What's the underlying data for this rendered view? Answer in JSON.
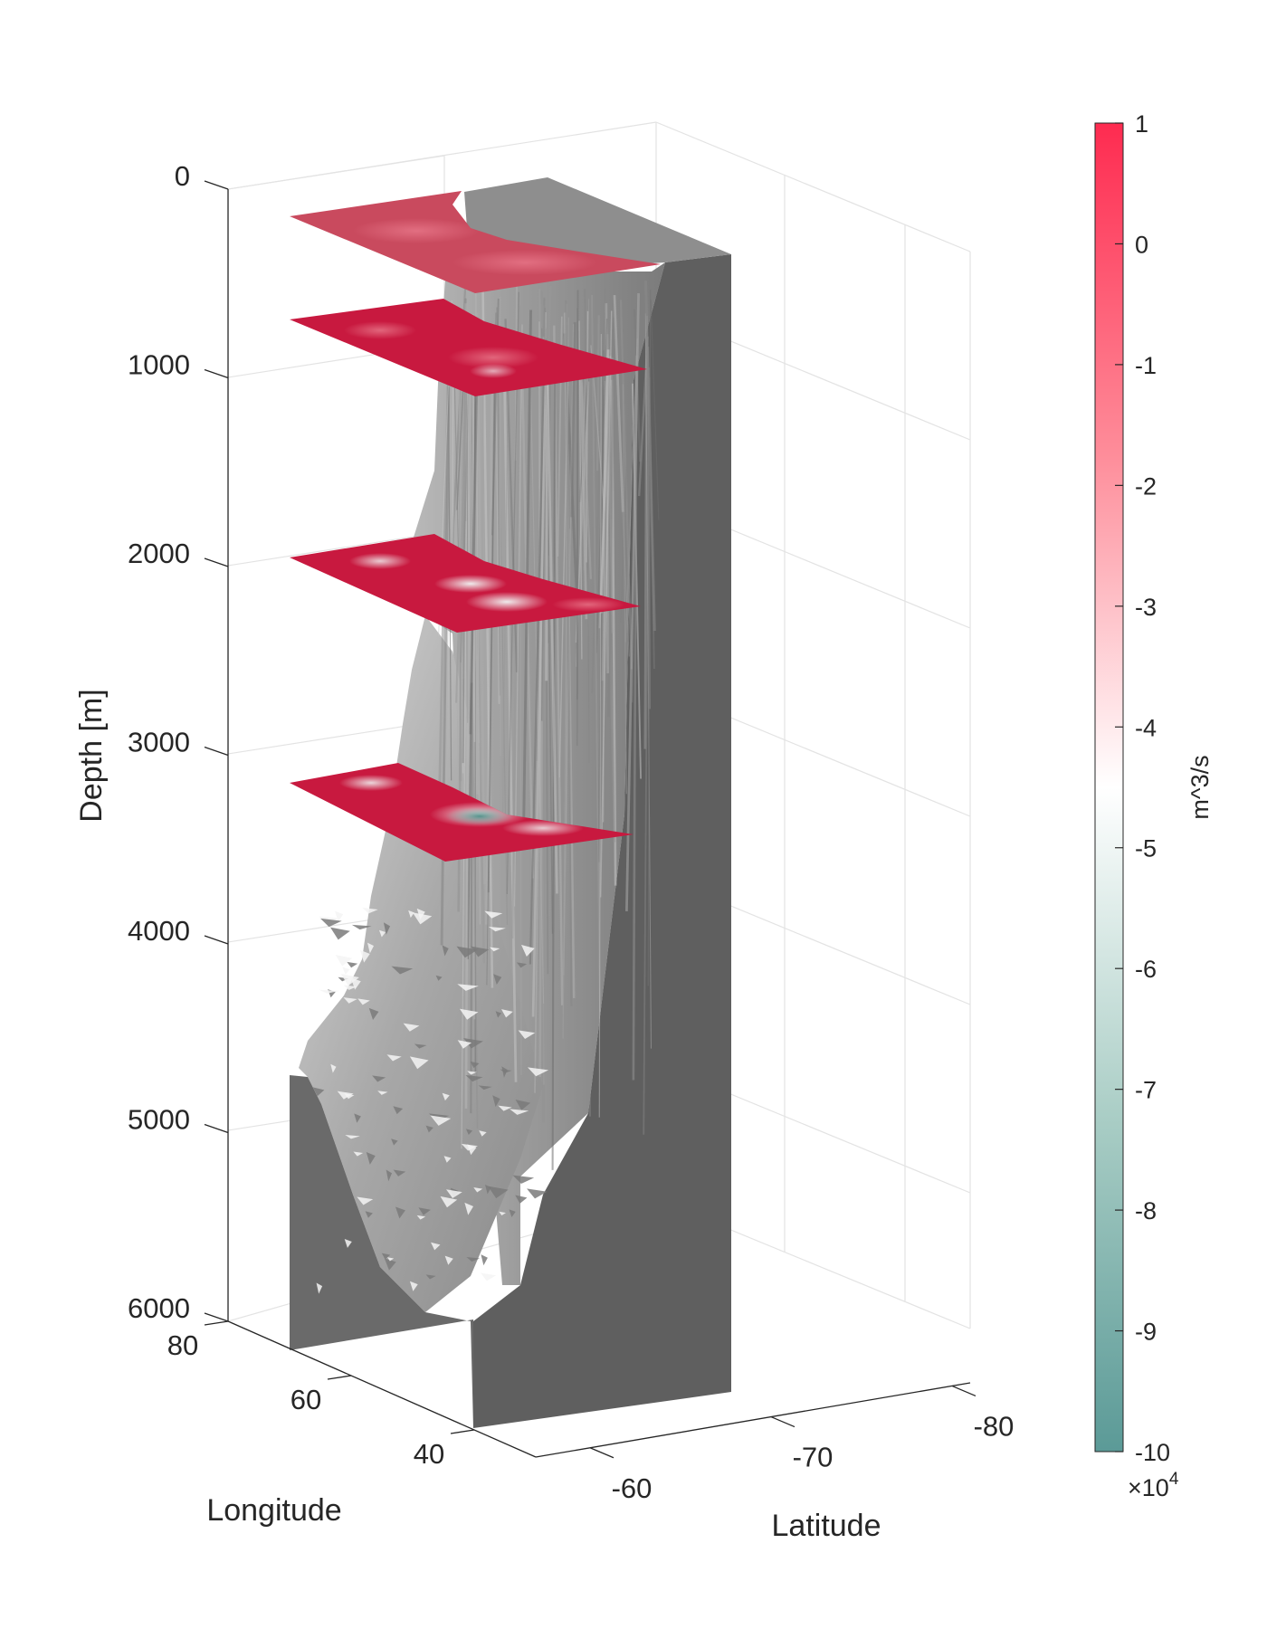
{
  "chart_data": {
    "type": "surface3d",
    "title": "",
    "axes": {
      "z": {
        "label": "Depth [m]",
        "ticks": [
          0,
          1000,
          2000,
          3000,
          4000,
          5000,
          6000
        ],
        "reversed": true,
        "range": [
          0,
          6000
        ]
      },
      "longitude": {
        "label": "Longitude",
        "ticks": [
          80,
          60,
          40
        ],
        "range": [
          30,
          80
        ]
      },
      "latitude": {
        "label": "Latitude",
        "ticks": [
          -60,
          -70,
          -80
        ],
        "range": [
          -57,
          -81
        ]
      }
    },
    "grid": true,
    "colorbar": {
      "label": "m^3/s",
      "ticks": [
        1,
        0,
        -1,
        -2,
        -3,
        -4,
        -5,
        -6,
        -7,
        -8,
        -9,
        -10
      ],
      "multiplier": "×10",
      "exponent": "4",
      "range": [
        -10,
        1
      ],
      "colors": [
        "#5b9a97",
        "#ffffff",
        "#fe2b50"
      ]
    },
    "surface": {
      "name": "bathymetry",
      "color": "#8f8f8f",
      "wall_color": "#656565"
    },
    "slices": [
      {
        "depth": 200,
        "min_value": 0.2,
        "max_value": 0.6
      },
      {
        "depth": 800,
        "min_value": -3.0,
        "max_value": 0.4
      },
      {
        "depth": 2000,
        "min_value": -5.5,
        "max_value": 0.4
      },
      {
        "depth": 3200,
        "min_value": -9.0,
        "max_value": 0.4
      }
    ]
  }
}
